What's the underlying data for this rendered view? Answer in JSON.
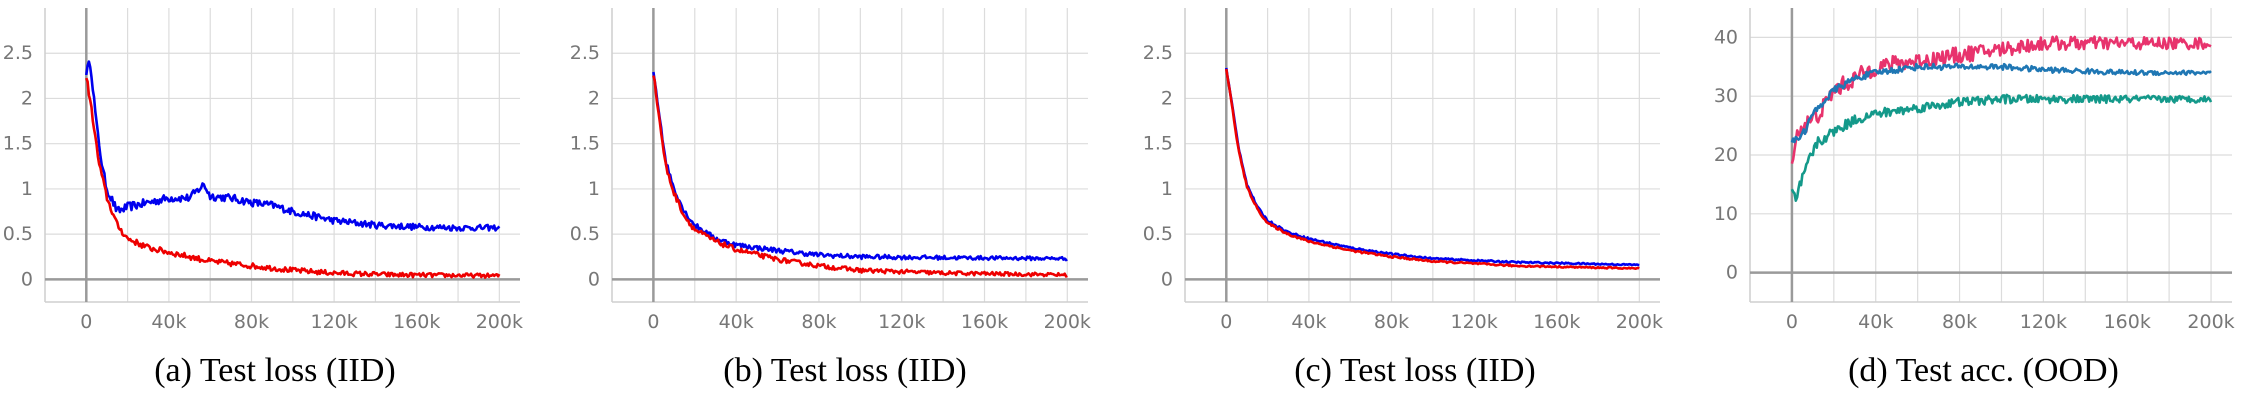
{
  "chart_data": [
    {
      "type": "line",
      "caption": "(a) Test loss (IID)",
      "x_ticks": [
        "0",
        "40k",
        "80k",
        "120k",
        "160k",
        "200k"
      ],
      "x_tick_values": [
        0,
        40000,
        80000,
        120000,
        160000,
        200000
      ],
      "y_ticks": [
        "0",
        "0.5",
        "1",
        "1.5",
        "2",
        "2.5"
      ],
      "y_tick_values": [
        0,
        0.5,
        1,
        1.5,
        2,
        2.5
      ],
      "xlim": [
        -20000,
        210000
      ],
      "ylim": [
        -0.25,
        3.0
      ],
      "grid": true,
      "legend": "none",
      "series": [
        {
          "color": "#0000ee",
          "noise": 0.05,
          "x": [
            0,
            2000,
            5000,
            8000,
            10000,
            15000,
            20000,
            30000,
            40000,
            50000,
            57000,
            60000,
            70000,
            80000,
            90000,
            100000,
            110000,
            120000,
            140000,
            160000,
            180000,
            200000
          ],
          "y": [
            2.3,
            2.4,
            1.7,
            1.2,
            1.0,
            0.75,
            0.8,
            0.85,
            0.9,
            0.9,
            1.05,
            0.92,
            0.9,
            0.85,
            0.82,
            0.75,
            0.7,
            0.65,
            0.6,
            0.58,
            0.57,
            0.57
          ]
        },
        {
          "color": "#ee0000",
          "noise": 0.035,
          "x": [
            0,
            3000,
            6000,
            10000,
            15000,
            20000,
            30000,
            40000,
            60000,
            80000,
            100000,
            120000,
            150000,
            200000
          ],
          "y": [
            2.25,
            1.8,
            1.3,
            0.9,
            0.6,
            0.45,
            0.35,
            0.3,
            0.2,
            0.15,
            0.1,
            0.07,
            0.05,
            0.04
          ]
        }
      ]
    },
    {
      "type": "line",
      "caption": "(b) Test loss (IID)",
      "x_ticks": [
        "0",
        "40k",
        "80k",
        "120k",
        "160k",
        "200k"
      ],
      "x_tick_values": [
        0,
        40000,
        80000,
        120000,
        160000,
        200000
      ],
      "y_ticks": [
        "0",
        "0.5",
        "1",
        "1.5",
        "2",
        "2.5"
      ],
      "y_tick_values": [
        0,
        0.5,
        1,
        1.5,
        2,
        2.5
      ],
      "xlim": [
        -20000,
        210000
      ],
      "ylim": [
        -0.25,
        3.0
      ],
      "grid": true,
      "legend": "none",
      "series": [
        {
          "color": "#0000ee",
          "noise": 0.03,
          "x": [
            0,
            3000,
            6000,
            10000,
            15000,
            20000,
            30000,
            40000,
            60000,
            80000,
            100000,
            140000,
            200000
          ],
          "y": [
            2.3,
            1.8,
            1.3,
            1.0,
            0.75,
            0.6,
            0.45,
            0.38,
            0.32,
            0.27,
            0.25,
            0.24,
            0.23
          ]
        },
        {
          "color": "#ee0000",
          "noise": 0.03,
          "x": [
            0,
            3000,
            6000,
            10000,
            15000,
            20000,
            30000,
            40000,
            60000,
            80000,
            100000,
            140000,
            200000
          ],
          "y": [
            2.28,
            1.75,
            1.25,
            0.95,
            0.7,
            0.55,
            0.42,
            0.33,
            0.22,
            0.15,
            0.1,
            0.07,
            0.05
          ]
        }
      ]
    },
    {
      "type": "line",
      "caption": "(c) Test loss (IID)",
      "x_ticks": [
        "0",
        "40k",
        "80k",
        "120k",
        "160k",
        "200k"
      ],
      "x_tick_values": [
        0,
        40000,
        80000,
        120000,
        160000,
        200000
      ],
      "y_ticks": [
        "0",
        "0.5",
        "1",
        "1.5",
        "2",
        "2.5"
      ],
      "y_tick_values": [
        0,
        0.5,
        1,
        1.5,
        2,
        2.5
      ],
      "xlim": [
        -20000,
        210000
      ],
      "ylim": [
        -0.25,
        3.0
      ],
      "grid": true,
      "legend": "none",
      "series": [
        {
          "color": "#0000ee",
          "noise": 0.012,
          "x": [
            0,
            3000,
            6000,
            10000,
            15000,
            20000,
            30000,
            40000,
            60000,
            80000,
            100000,
            140000,
            200000
          ],
          "y": [
            2.33,
            1.9,
            1.45,
            1.05,
            0.8,
            0.65,
            0.52,
            0.45,
            0.35,
            0.28,
            0.23,
            0.19,
            0.16
          ]
        },
        {
          "color": "#ee0000",
          "noise": 0.012,
          "x": [
            0,
            3000,
            6000,
            10000,
            15000,
            20000,
            30000,
            40000,
            60000,
            80000,
            100000,
            140000,
            200000
          ],
          "y": [
            2.33,
            1.88,
            1.42,
            1.02,
            0.78,
            0.62,
            0.5,
            0.42,
            0.32,
            0.25,
            0.2,
            0.15,
            0.12
          ]
        }
      ]
    },
    {
      "type": "line",
      "caption": "(d) Test acc. (OOD)",
      "x_ticks": [
        "0",
        "40k",
        "80k",
        "120k",
        "160k",
        "200k"
      ],
      "x_tick_values": [
        0,
        40000,
        80000,
        120000,
        160000,
        200000
      ],
      "y_ticks": [
        "0",
        "10",
        "20",
        "30",
        "40"
      ],
      "y_tick_values": [
        0,
        10,
        20,
        30,
        40
      ],
      "xlim": [
        -20000,
        210000
      ],
      "ylim": [
        -5,
        45
      ],
      "grid": true,
      "legend": "none",
      "series": [
        {
          "color": "#e8336d",
          "noise": 1.6,
          "x": [
            0,
            3000,
            6000,
            10000,
            15000,
            20000,
            30000,
            40000,
            60000,
            80000,
            100000,
            120000,
            140000,
            160000,
            180000,
            200000
          ],
          "y": [
            20,
            24,
            25,
            26,
            28,
            31,
            33,
            35,
            36,
            37,
            38,
            39,
            39,
            39,
            39,
            39
          ]
        },
        {
          "color": "#1f77b4",
          "noise": 0.6,
          "x": [
            0,
            3000,
            6000,
            10000,
            15000,
            20000,
            30000,
            40000,
            60000,
            80000,
            100000,
            120000,
            160000,
            200000
          ],
          "y": [
            22,
            23,
            24,
            27,
            29,
            31,
            33,
            34,
            35,
            35,
            35,
            34.5,
            34,
            34
          ]
        },
        {
          "color": "#14998a",
          "noise": 0.9,
          "x": [
            0,
            2000,
            4000,
            8000,
            12000,
            16000,
            20000,
            30000,
            40000,
            60000,
            80000,
            100000,
            140000,
            200000
          ],
          "y": [
            14,
            12,
            15,
            19,
            22,
            23,
            24,
            26,
            27,
            28,
            29,
            29.5,
            29.5,
            29.5
          ]
        }
      ]
    }
  ]
}
